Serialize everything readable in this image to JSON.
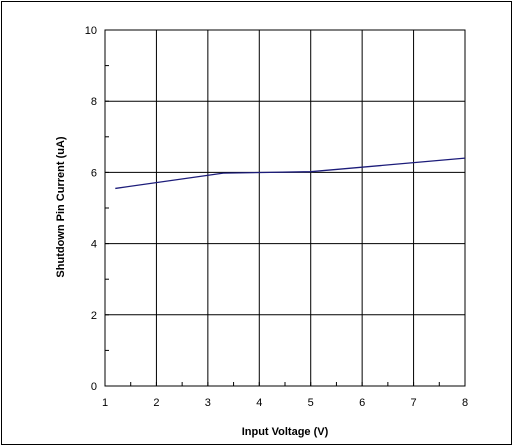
{
  "chart_data": {
    "type": "line",
    "title": "",
    "xlabel": "Input Voltage (V)",
    "ylabel": "Shutdown Pin Current (uA)",
    "xlim": [
      1,
      8
    ],
    "ylim": [
      0,
      10
    ],
    "x_ticks": [
      1,
      2,
      3,
      4,
      5,
      6,
      7,
      8
    ],
    "y_ticks": [
      0,
      2,
      4,
      6,
      8,
      10
    ],
    "grid": true,
    "legend": "none",
    "series": [
      {
        "color": "#1c1c7a",
        "x": [
          1.2,
          3.3,
          5.0,
          8.0
        ],
        "y": [
          5.55,
          5.98,
          6.02,
          6.4
        ]
      }
    ]
  }
}
